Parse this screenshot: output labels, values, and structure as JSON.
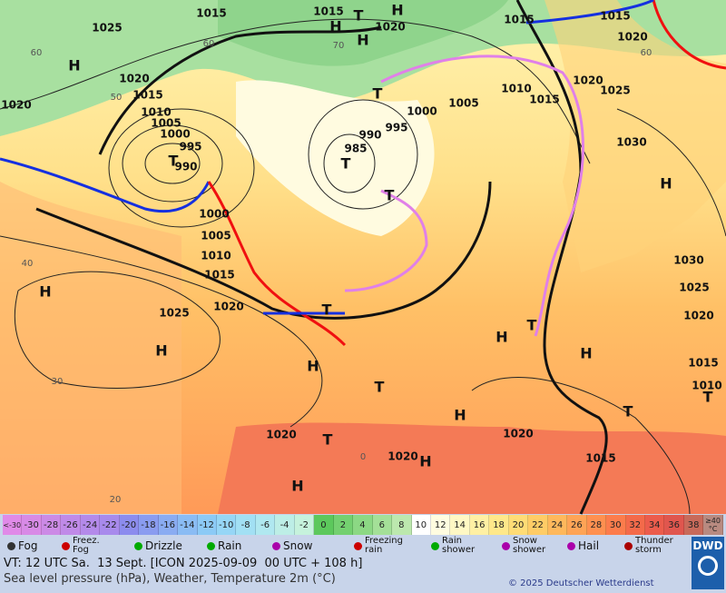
{
  "map": {
    "labels": [
      "1015",
      "1015",
      "H",
      "T",
      "H",
      "1020",
      "H",
      "1015",
      "1015",
      "1025",
      "1020",
      "1020",
      "1015",
      "1010",
      "1005",
      "1000",
      "995",
      "990",
      "T",
      "1020",
      "H",
      "T",
      "990",
      "995",
      "1000",
      "1005",
      "985",
      "T",
      "1010",
      "1015",
      "1020",
      "1025",
      "1030",
      "H",
      "T",
      "1000",
      "1005",
      "1010",
      "1015",
      "1020",
      "1025",
      "H",
      "H",
      "T",
      "1030",
      "1025",
      "1020",
      "T",
      "H",
      "H",
      "H",
      "T",
      "H",
      "1015",
      "1010",
      "T",
      "T",
      "1020",
      "T",
      "1020",
      "1020",
      "H",
      "H",
      "1015"
    ],
    "grid_labels": [
      "60",
      "50",
      "40",
      "30",
      "20",
      "60",
      "70",
      "60",
      "0"
    ]
  },
  "temperature_scale": [
    {
      "label": "<-30",
      "color": "#e08ae8"
    },
    {
      "label": "-30",
      "color": "#d88ae6"
    },
    {
      "label": "-28",
      "color": "#cc8ae6"
    },
    {
      "label": "-26",
      "color": "#c08ae8"
    },
    {
      "label": "-24",
      "color": "#b48aea"
    },
    {
      "label": "-22",
      "color": "#a88aec"
    },
    {
      "label": "-20",
      "color": "#8c8cee"
    },
    {
      "label": "-18",
      "color": "#8a9cf0"
    },
    {
      "label": "-16",
      "color": "#8aacf2"
    },
    {
      "label": "-14",
      "color": "#8abcf4"
    },
    {
      "label": "-12",
      "color": "#8ccaf6"
    },
    {
      "label": "-10",
      "color": "#96d6f6"
    },
    {
      "label": "-8",
      "color": "#a2e0f4"
    },
    {
      "label": "-6",
      "color": "#b0e8f0"
    },
    {
      "label": "-4",
      "color": "#bdeee6"
    },
    {
      "label": "-2",
      "color": "#c6f2dc"
    },
    {
      "label": "0",
      "color": "#5cc85c"
    },
    {
      "label": "2",
      "color": "#74d070"
    },
    {
      "label": "4",
      "color": "#8cd884"
    },
    {
      "label": "6",
      "color": "#a4e098"
    },
    {
      "label": "8",
      "color": "#bce8ae"
    },
    {
      "label": "10",
      "color": "#ffffff"
    },
    {
      "label": "12",
      "color": "#fffce0"
    },
    {
      "label": "14",
      "color": "#fff8c4"
    },
    {
      "label": "16",
      "color": "#fff0a4"
    },
    {
      "label": "18",
      "color": "#ffe88a"
    },
    {
      "label": "20",
      "color": "#ffdc76"
    },
    {
      "label": "22",
      "color": "#ffcc66"
    },
    {
      "label": "24",
      "color": "#ffb85c"
    },
    {
      "label": "26",
      "color": "#ffa456"
    },
    {
      "label": "28",
      "color": "#ff9050"
    },
    {
      "label": "30",
      "color": "#fc7c4c"
    },
    {
      "label": "32",
      "color": "#f46a4a"
    },
    {
      "label": "34",
      "color": "#ec5c4c"
    },
    {
      "label": "36",
      "color": "#e0564e"
    },
    {
      "label": "38",
      "color": "#c86a5a"
    },
    {
      "label": "≥40 °C",
      "color": "#b88a80"
    }
  ],
  "symbols": [
    "Fog",
    "Freez. Fog",
    "Drizzle",
    "Rain",
    "Snow",
    "Freezing rain",
    "Rain shower",
    "Snow shower",
    "Hail",
    "Thunder storm"
  ],
  "footer": {
    "valid_time": "VT: 12 UTC Sa.  13 Sept. [ICON 2025-09-09  00 UTC + 108 h]",
    "description": "Sea level pressure (hPa), Weather, Temperature 2m (°C)",
    "copyright": "© 2025 Deutscher Wetterdienst",
    "logo": "DWD"
  }
}
